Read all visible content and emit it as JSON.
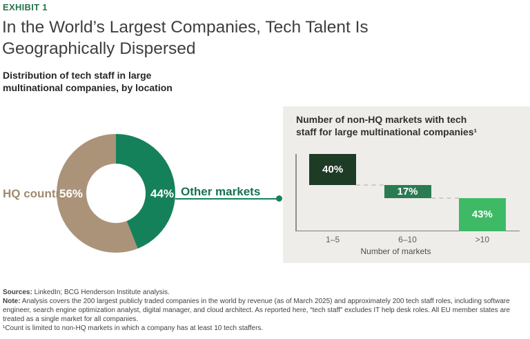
{
  "header": {
    "exhibit_label": "EXHIBIT 1",
    "title_lines": [
      "In the World’s Largest Companies, Tech Talent Is",
      "Geographically Dispersed"
    ],
    "title": "In the World’s Largest Companies, Tech Talent Is Geographically Dispersed",
    "subtitle_lines": [
      "Distribution of tech staff in large",
      "multinational companies, by location"
    ]
  },
  "colors": {
    "exhibit_green": "#26734d",
    "donut_green": "#15815a",
    "donut_tan": "#ab937a",
    "hq_text_tan": "#a18a6e",
    "other_text_green": "#15734e",
    "bar_dark_green": "#1e3b26",
    "bar_mid_green": "#2a7b52",
    "bar_light_green": "#3eba66",
    "panel_background": "#efede9"
  },
  "chart_data": [
    {
      "type": "pie",
      "subtype": "donut",
      "title": "Distribution of tech staff in large multinational companies, by location",
      "categories": [
        "HQ country",
        "Other markets"
      ],
      "values": [
        56,
        44
      ],
      "unit": "%",
      "labels": [
        "56%",
        "44%"
      ],
      "colors": [
        "#ab937a",
        "#15815a"
      ],
      "start_angle": "12 o'clock, green (Other markets) clockwise first",
      "legend_position": "labels beside donut"
    },
    {
      "type": "bar",
      "subtype": "waterfall",
      "title_lines": [
        "Number of non-HQ markets with tech",
        "staff for large multinational companies¹"
      ],
      "title": "Number of non-HQ markets with tech staff for large multinational companies¹",
      "categories": [
        "1–5",
        "6–10",
        ">10"
      ],
      "values": [
        40,
        17,
        43
      ],
      "unit": "%",
      "bar_labels": [
        "40%",
        "17%",
        "43%"
      ],
      "colors": [
        "#1e3b26",
        "#2a7b52",
        "#3eba66"
      ],
      "xlabel": "Number of markets",
      "ylim": [
        0,
        100
      ],
      "grid": false,
      "note": "bars cascade downward from 100% total; dashed connectors link segment boundaries"
    }
  ],
  "footer": {
    "sources_label": "Sources:",
    "sources_text": " LinkedIn; BCG Henderson Institute analysis.",
    "note_label": "Note:",
    "note_text": " Analysis covers the 200 largest publicly traded companies in the world by revenue (as of March 2025) and approximately 200 tech staff roles, including software engineer, search engine optimization analyst, digital manager, and cloud architect. As reported here, “tech staff” excludes IT help desk roles. All EU member states are treated as a single market for all companies.",
    "footnote": "¹Count is limited to non-HQ markets in which a company has at least 10 tech staffers."
  }
}
